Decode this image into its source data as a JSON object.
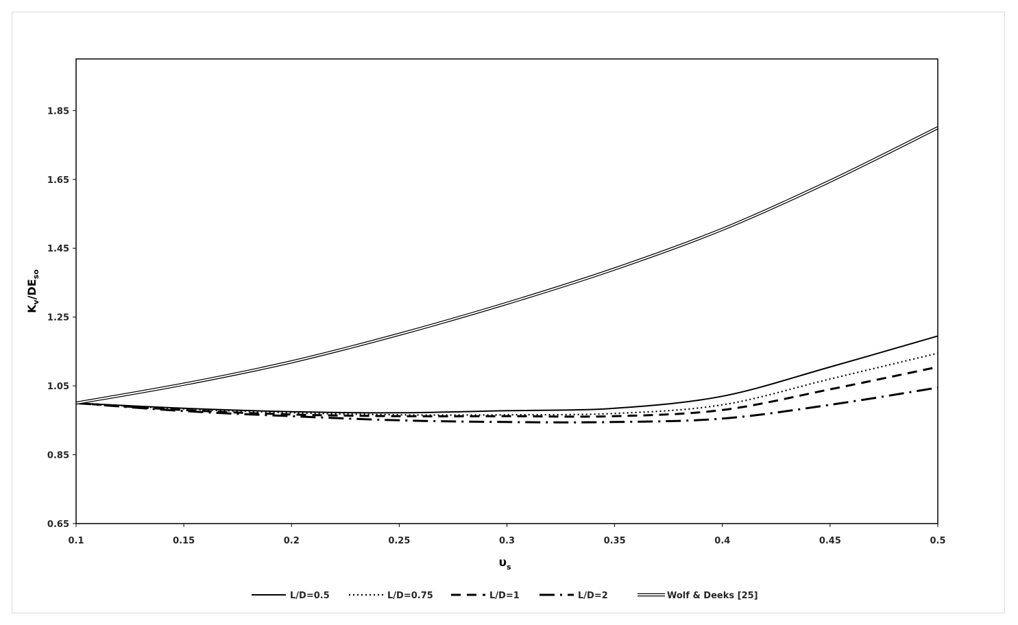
{
  "chart_data": {
    "type": "line",
    "title": "",
    "xlabel": "υs",
    "xlabel_main": "υ",
    "xlabel_sub": "s",
    "ylabel": "Kv/DEso",
    "ylabel_main": "K",
    "ylabel_sub1": "v",
    "ylabel_mid": "/DE",
    "ylabel_sub2": "so",
    "xlim": [
      0.1,
      0.5
    ],
    "ylim": [
      0.65,
      2.0
    ],
    "x_ticks": [
      "0.1",
      "0.15",
      "0.2",
      "0.25",
      "0.3",
      "0.35",
      "0.4",
      "0.45",
      "0.5"
    ],
    "y_ticks": [
      "0.65",
      "0.85",
      "1.05",
      "1.25",
      "1.45",
      "1.65",
      "1.85"
    ],
    "grid": false,
    "legend_position": "bottom",
    "x": [
      0.1,
      0.15,
      0.2,
      0.25,
      0.3,
      0.35,
      0.4,
      0.45,
      0.5
    ],
    "series": [
      {
        "name": "L/D=0.5",
        "style": "solid",
        "values": [
          1.0,
          0.985,
          0.975,
          0.972,
          0.978,
          0.985,
          1.02,
          1.105,
          1.195
        ]
      },
      {
        "name": "L/D=0.75",
        "style": "dotted",
        "values": [
          1.0,
          0.983,
          0.972,
          0.966,
          0.966,
          0.97,
          0.995,
          1.07,
          1.145
        ]
      },
      {
        "name": "L/D=1",
        "style": "dashed",
        "values": [
          1.0,
          0.98,
          0.967,
          0.962,
          0.962,
          0.962,
          0.98,
          1.04,
          1.105
        ]
      },
      {
        "name": "L/D=2",
        "style": "dashdot",
        "values": [
          1.0,
          0.977,
          0.962,
          0.95,
          0.945,
          0.945,
          0.955,
          0.995,
          1.045
        ]
      },
      {
        "name": "Wolf & Deeks [25]",
        "style": "double",
        "values": [
          1.0,
          1.055,
          1.12,
          1.2,
          1.29,
          1.39,
          1.505,
          1.645,
          1.8
        ]
      }
    ]
  }
}
